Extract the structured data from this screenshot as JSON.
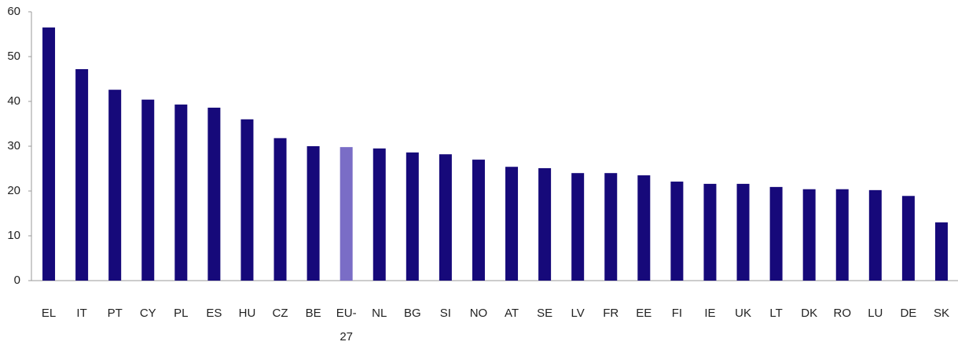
{
  "chart_data": {
    "type": "bar",
    "categories": [
      "EL",
      "IT",
      "PT",
      "CY",
      "PL",
      "ES",
      "HU",
      "CZ",
      "BE",
      "EU-27",
      "NL",
      "BG",
      "SI",
      "NO",
      "AT",
      "SE",
      "LV",
      "FR",
      "EE",
      "FI",
      "IE",
      "UK",
      "LT",
      "DK",
      "RO",
      "LU",
      "DE",
      "SK"
    ],
    "values": [
      56.5,
      47.2,
      42.6,
      40.4,
      39.3,
      38.6,
      36.0,
      31.8,
      30.0,
      29.8,
      29.5,
      28.6,
      28.2,
      27.0,
      25.4,
      25.1,
      24.0,
      24.0,
      23.5,
      22.1,
      21.6,
      21.6,
      20.9,
      20.4,
      20.4,
      20.2,
      18.9,
      13.0
    ],
    "colors": [
      "#16097a",
      "#16097a",
      "#16097a",
      "#16097a",
      "#16097a",
      "#16097a",
      "#16097a",
      "#16097a",
      "#16097a",
      "#7a6dc6",
      "#16097a",
      "#16097a",
      "#16097a",
      "#16097a",
      "#16097a",
      "#16097a",
      "#16097a",
      "#16097a",
      "#16097a",
      "#16097a",
      "#16097a",
      "#16097a",
      "#16097a",
      "#16097a",
      "#16097a",
      "#16097a",
      "#16097a",
      "#16097a"
    ],
    "ylim": [
      0,
      60
    ],
    "yticks": [
      0,
      10,
      20,
      30,
      40,
      50,
      60
    ],
    "grid": false
  }
}
